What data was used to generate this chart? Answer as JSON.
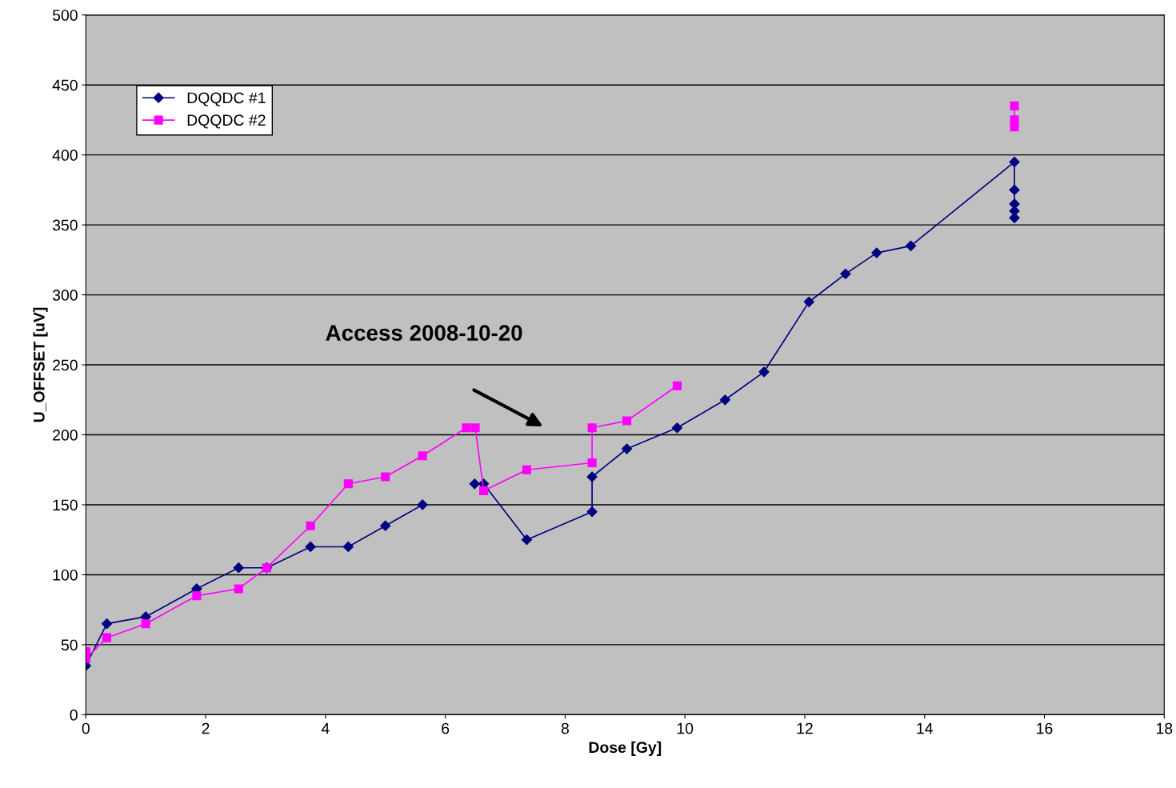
{
  "chart_data": {
    "type": "line",
    "xlabel": "Dose [Gy]",
    "ylabel": "U_OFFSET [uV]",
    "xlim": [
      0,
      18
    ],
    "xticks": [
      0,
      2,
      4,
      6,
      8,
      10,
      12,
      14,
      16,
      18
    ],
    "ylim": [
      0,
      500
    ],
    "yticks": [
      0,
      50,
      100,
      150,
      200,
      250,
      300,
      350,
      400,
      450,
      500
    ],
    "grid": "y",
    "legend": "top left",
    "line_style": "solid",
    "annotations": [
      "Access 2008-10-20"
    ],
    "series": [
      {
        "name": "DQQDC #1",
        "color": "#000080",
        "marker": "diamond",
        "x": [
          0,
          0.35,
          1.0,
          1.85,
          2.55,
          3.02,
          3.75,
          4.38,
          5.0,
          5.62,
          5.9,
          6.49,
          6.64,
          7.36,
          8.45,
          8.45,
          9.03,
          9.87,
          10.67,
          11.32,
          12.07,
          12.68,
          13.2,
          13.77,
          15.5,
          15.5,
          15.5,
          15.5,
          15.5
        ],
        "values": [
          35,
          65,
          70,
          90,
          105,
          105,
          120,
          120,
          135,
          150,
          null,
          165,
          165,
          125,
          145,
          170,
          190,
          205,
          225,
          245,
          295,
          315,
          330,
          335,
          395,
          375,
          365,
          360,
          355
        ]
      },
      {
        "name": "DQQDC #2",
        "color": "#ff00ff",
        "marker": "square",
        "x": [
          0,
          0,
          0.35,
          1.0,
          1.85,
          2.55,
          3.02,
          3.75,
          4.38,
          5.0,
          5.62,
          6.35,
          6.5,
          6.64,
          7.36,
          8.45,
          8.45,
          9.03,
          9.87,
          12.0,
          15.5,
          15.5,
          15.5
        ],
        "values": [
          45,
          40,
          55,
          65,
          85,
          90,
          105,
          135,
          165,
          170,
          185,
          205,
          205,
          160,
          175,
          180,
          205,
          210,
          235,
          null,
          435,
          425,
          420
        ]
      }
    ]
  }
}
